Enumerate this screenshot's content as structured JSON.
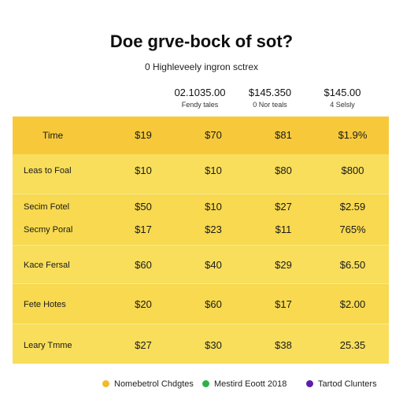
{
  "header": {
    "title": "Doe grve-bock of sot?",
    "subtitle": "0 Highleveely ingron sctrex"
  },
  "columns": [
    {
      "value": "02.1035.00",
      "label": "Fendy tales"
    },
    {
      "value": "$145.350",
      "label": "0 Nor teals"
    },
    {
      "value": "$145.00",
      "label": "4 Selsly"
    }
  ],
  "table": {
    "header": {
      "label": "Time",
      "values": [
        "$19",
        "$70",
        "$81",
        "$1.9%"
      ]
    },
    "rows": [
      {
        "label": "Leas to Foal",
        "values": [
          "$10",
          "$10",
          "$80",
          "$800"
        ]
      },
      {
        "label": "Secim Fotel",
        "values": [
          "$50",
          "$10",
          "$27",
          "$2.59"
        ]
      },
      {
        "label": "Secmy Poral",
        "values": [
          "$17",
          "$23",
          "$11",
          "765%"
        ]
      },
      {
        "label": "Kace Fersal",
        "values": [
          "$60",
          "$40",
          "$29",
          "$6.50"
        ]
      },
      {
        "label": "Fete Hotes",
        "values": [
          "$20",
          "$60",
          "$17",
          "$2.00"
        ]
      },
      {
        "label": "Leary Tmme",
        "values": [
          "$27",
          "$30",
          "$38",
          "25.35"
        ]
      }
    ]
  },
  "legend": [
    {
      "label": "Nomebetrol Chdgtes",
      "color": "#f2b92b"
    },
    {
      "label": "Mestird Eoott 2018",
      "color": "#2db24a"
    },
    {
      "label": "Tartod Clunters",
      "color": "#5b1fa8"
    }
  ]
}
